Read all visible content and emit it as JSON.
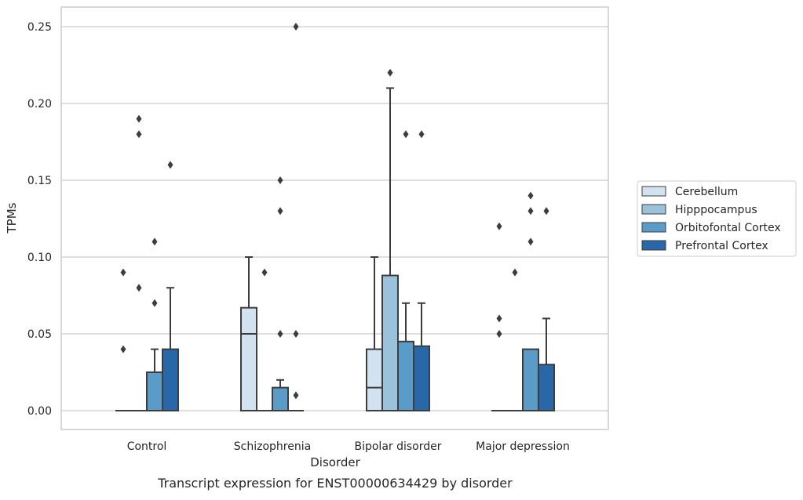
{
  "chart_data": {
    "type": "boxplot",
    "caption": "Transcript expression for ENST00000634429 by disorder",
    "xlabel": "Disorder",
    "ylabel": "TPMs",
    "ylim": [
      -0.012,
      0.263
    ],
    "yticks": [
      0.0,
      0.05,
      0.1,
      0.15,
      0.2,
      0.25
    ],
    "ytick_labels": [
      "0.00",
      "0.05",
      "0.10",
      "0.15",
      "0.20",
      "0.25"
    ],
    "grid": "horizontal",
    "legend_position": "right",
    "categories": [
      "Control",
      "Schizophrenia",
      "Bipolar disorder",
      "Major depression"
    ],
    "series": [
      {
        "name": "Cerebellum",
        "color": "#d3e2f1",
        "boxes": [
          {
            "min": 0,
            "q1": 0,
            "median": 0,
            "q3": 0,
            "max": 0,
            "outliers": [
              0.04,
              0.09
            ]
          },
          {
            "min": 0,
            "q1": 0,
            "median": 0.05,
            "q3": 0.067,
            "max": 0.1,
            "outliers": []
          },
          {
            "min": 0,
            "q1": 0,
            "median": 0.015,
            "q3": 0.04,
            "max": 0.1,
            "outliers": []
          },
          {
            "min": 0,
            "q1": 0,
            "median": 0,
            "q3": 0,
            "max": 0,
            "outliers": [
              0.05,
              0.06,
              0.12
            ]
          }
        ]
      },
      {
        "name": "Hipppocampus",
        "color": "#9ac2da",
        "boxes": [
          {
            "min": 0,
            "q1": 0,
            "median": 0,
            "q3": 0,
            "max": 0,
            "outliers": [
              0.08,
              0.18,
              0.19
            ]
          },
          {
            "min": 0,
            "q1": 0,
            "median": 0,
            "q3": 0,
            "max": 0,
            "outliers": [
              0.09
            ]
          },
          {
            "min": 0,
            "q1": 0,
            "median": 0,
            "q3": 0.088,
            "max": 0.21,
            "outliers": [
              0.22
            ]
          },
          {
            "min": 0,
            "q1": 0,
            "median": 0,
            "q3": 0,
            "max": 0,
            "outliers": [
              0.09
            ]
          }
        ]
      },
      {
        "name": "Orbitofontal Cortex",
        "color": "#5b9bc8",
        "boxes": [
          {
            "min": 0,
            "q1": 0,
            "median": 0,
            "q3": 0.025,
            "max": 0.04,
            "outliers": [
              0.07,
              0.11
            ]
          },
          {
            "min": 0,
            "q1": 0,
            "median": 0,
            "q3": 0.015,
            "max": 0.02,
            "outliers": [
              0.05,
              0.13,
              0.15
            ]
          },
          {
            "min": 0,
            "q1": 0,
            "median": 0,
            "q3": 0.045,
            "max": 0.07,
            "outliers": [
              0.18
            ]
          },
          {
            "min": 0,
            "q1": 0,
            "median": 0,
            "q3": 0.04,
            "max": 0.04,
            "outliers": [
              0.11,
              0.13,
              0.14
            ]
          }
        ]
      },
      {
        "name": "Prefrontal Cortex",
        "color": "#2868a8",
        "boxes": [
          {
            "min": 0,
            "q1": 0,
            "median": 0,
            "q3": 0.04,
            "max": 0.08,
            "outliers": [
              0.16
            ]
          },
          {
            "min": 0,
            "q1": 0,
            "median": 0,
            "q3": 0,
            "max": 0,
            "outliers": [
              0.01,
              0.05,
              0.25
            ]
          },
          {
            "min": 0,
            "q1": 0,
            "median": 0,
            "q3": 0.042,
            "max": 0.07,
            "outliers": [
              0.18
            ]
          },
          {
            "min": 0,
            "q1": 0,
            "median": 0,
            "q3": 0.03,
            "max": 0.06,
            "outliers": [
              0.13
            ]
          }
        ]
      }
    ]
  }
}
